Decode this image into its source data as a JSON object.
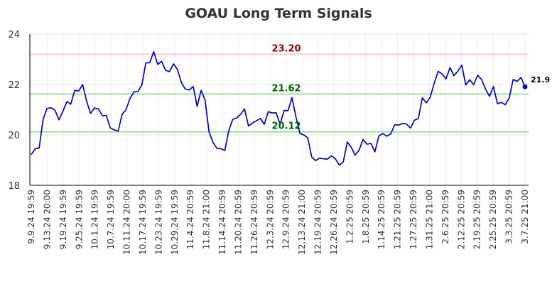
{
  "chart_data": {
    "type": "line",
    "title": "GOAU Long Term Signals",
    "ylim": [
      18,
      24
    ],
    "yticks": [
      "18",
      "20",
      "22",
      "24"
    ],
    "x_tick_labels": [
      "9.9.24 19:59",
      "9.13.24 20:00",
      "9.19.24 19:59",
      "9.25.24 19:59",
      "10.1.24 19:59",
      "10.7.24 19:59",
      "10.11.24 20:00",
      "10.17.24 19:59",
      "10.23.24 19:59",
      "10.29.24 19:59",
      "11.4.24 20:59",
      "11.8.24 21:00",
      "11.14.24 20:59",
      "11.20.24 20:59",
      "11.26.24 20:59",
      "12.3.24 20:59",
      "12.9.24 20:59",
      "12.13.24 21:00",
      "12.19.24 20:59",
      "12.26.24 20:59",
      "1.2.25 20:59",
      "1.8.25 20:59",
      "1.14.25 20:59",
      "1.21.25 20:59",
      "1.27.25 20:59",
      "1.31.25 21:00",
      "2.6.25 20:59",
      "2.12.25 20:59",
      "2.19.25 20:59",
      "2.25.25 20:59",
      "3.3.25 20:59",
      "3.7.25 21:00"
    ],
    "grid": true,
    "line_color": "#0000cc",
    "series": [
      {
        "values": [
          19.22,
          19.45,
          19.48,
          20.62,
          21.05,
          21.08,
          20.98,
          20.6,
          20.93,
          21.32,
          21.22,
          21.77,
          21.74,
          22.0,
          21.35,
          20.85,
          21.07,
          21.03,
          20.76,
          20.77,
          20.28,
          20.2,
          20.15,
          20.82,
          21.0,
          21.45,
          21.71,
          21.72,
          21.98,
          22.85,
          22.87,
          23.3,
          22.8,
          22.92,
          22.57,
          22.51,
          22.82,
          22.6,
          22.08,
          21.82,
          21.78,
          21.92,
          21.13,
          21.77,
          21.38,
          20.13,
          19.7,
          19.47,
          19.45,
          19.38,
          20.17,
          20.62,
          20.67,
          20.82,
          21.03,
          20.35,
          20.47,
          20.56,
          20.65,
          20.42,
          20.92,
          20.87,
          20.88,
          20.42,
          20.97,
          20.96,
          21.48,
          20.72,
          20.06,
          20.0,
          19.88,
          19.12,
          18.98,
          19.08,
          19.05,
          19.04,
          19.17,
          19.05,
          18.8,
          18.93,
          19.72,
          19.51,
          19.2,
          19.4,
          19.82,
          19.63,
          19.66,
          19.33,
          19.96,
          20.05,
          19.95,
          20.04,
          20.4,
          20.39,
          20.45,
          20.43,
          20.27,
          20.58,
          20.65,
          21.47,
          21.27,
          21.5,
          22.04,
          22.52,
          22.42,
          22.22,
          22.67,
          22.35,
          22.53,
          22.77,
          21.98,
          22.19,
          21.99,
          22.37,
          22.2,
          21.82,
          21.53,
          21.92,
          21.24,
          21.29,
          21.2,
          21.47,
          22.2,
          22.12,
          22.28,
          21.91
        ]
      }
    ],
    "reference_lines": [
      {
        "value": 23.2,
        "label": "23.20",
        "line_color": "#ffcccc",
        "label_color": "#990000"
      },
      {
        "value": 21.62,
        "label": "21.62",
        "line_color": "#99e699",
        "label_color": "#006600"
      },
      {
        "value": 20.12,
        "label": "20.12",
        "line_color": "#99e699",
        "label_color": "#006600"
      }
    ],
    "last_value_label": "21.9"
  }
}
